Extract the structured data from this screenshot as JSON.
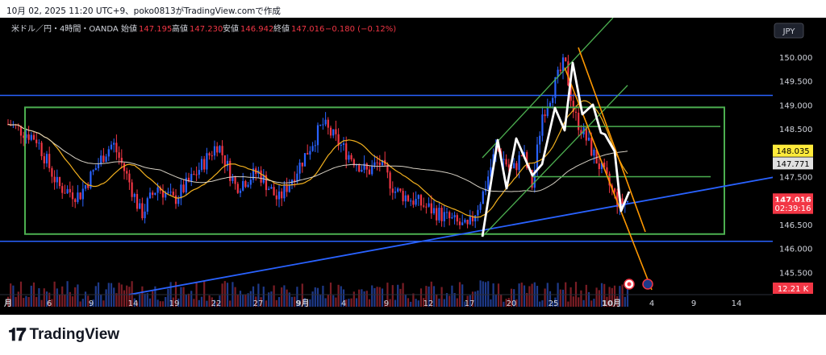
{
  "header": {
    "caption": "10月 02, 2025 11:20 UTC+9、poko0813がTradingView.comで作成"
  },
  "legend": {
    "symbol": "米ドル／円・4時間・OANDA",
    "open_label": "始値",
    "open": "147.195",
    "high_label": "高値",
    "high": "147.230",
    "low_label": "安値",
    "low": "146.942",
    "close_label": "終値",
    "close": "147.016",
    "change": "−0.180 (−0.12%)"
  },
  "currency_button": "JPY",
  "price_axis": {
    "ticks": [
      "150.000",
      "149.500",
      "149.000",
      "148.500",
      "147.500",
      "146.500",
      "146.000",
      "145.500"
    ],
    "labels": [
      {
        "text": "148.035",
        "bg": "#ffeb3b",
        "fg": "#000000",
        "value": 148.035
      },
      {
        "text": "147.771",
        "bg": "#e0e0e0",
        "fg": "#000000",
        "value": 147.771
      },
      {
        "text": "147.016",
        "bg": "#f23645",
        "fg": "#ffffff",
        "value": 147.016
      },
      {
        "text": "02:39:16",
        "bg": "#f23645",
        "fg": "#ffffff",
        "value": 146.84
      }
    ],
    "volume": "12.21 K"
  },
  "time_axis": {
    "ticks": [
      "月",
      "6",
      "9",
      "14",
      "19",
      "22",
      "27",
      "9月",
      "4",
      "9",
      "12",
      "17",
      "20",
      "25",
      "10月",
      "4",
      "9",
      "14"
    ]
  },
  "colors": {
    "up": "#2962ff",
    "down": "#f23645",
    "box": "#4caf50",
    "trend": "#2962ff",
    "channel": "#ff9800",
    "ma_fast": "#f2b01e",
    "ma_slow": "#d6d0c4"
  },
  "chart_data": {
    "type": "candlestick",
    "title": "米ドル／円・4時間・OANDA",
    "ylim": [
      145.3,
      150.45
    ],
    "x_categories": [
      "月",
      "6",
      "9",
      "14",
      "19",
      "22",
      "27",
      "9月",
      "4",
      "9",
      "12",
      "17",
      "20",
      "25",
      "10月",
      "4",
      "9",
      "14"
    ],
    "ohlc": {
      "open": 147.195,
      "high": 147.23,
      "low": 146.942,
      "close": 147.016,
      "change": -0.18,
      "change_pct": -0.12
    },
    "close_path": [
      {
        "t": "29",
        "v": 148.6
      },
      {
        "t": "1",
        "v": 148.3
      },
      {
        "t": "3",
        "v": 147.3
      },
      {
        "t": "6",
        "v": 147.1
      },
      {
        "t": "8",
        "v": 148.0
      },
      {
        "t": "9",
        "v": 148.2
      },
      {
        "t": "11",
        "v": 147.4
      },
      {
        "t": "14",
        "v": 146.7
      },
      {
        "t": "15",
        "v": 147.3
      },
      {
        "t": "18",
        "v": 147.0
      },
      {
        "t": "20",
        "v": 147.5
      },
      {
        "t": "22",
        "v": 148.2
      },
      {
        "t": "25",
        "v": 147.3
      },
      {
        "t": "27",
        "v": 147.6
      },
      {
        "t": "29",
        "v": 147.0
      },
      {
        "t": "1",
        "v": 147.7
      },
      {
        "t": "3",
        "v": 148.6
      },
      {
        "t": "5",
        "v": 148.0
      },
      {
        "t": "8",
        "v": 147.6
      },
      {
        "t": "11",
        "v": 147.8
      },
      {
        "t": "12",
        "v": 147.2
      },
      {
        "t": "16",
        "v": 146.9
      },
      {
        "t": "17",
        "v": 146.4
      },
      {
        "t": "18",
        "v": 147.2
      },
      {
        "t": "19",
        "v": 148.1
      },
      {
        "t": "22",
        "v": 147.6
      },
      {
        "t": "23",
        "v": 148.0
      },
      {
        "t": "24",
        "v": 147.3
      },
      {
        "t": "25",
        "v": 148.8
      },
      {
        "t": "26",
        "v": 149.9
      },
      {
        "t": "29",
        "v": 148.8
      },
      {
        "t": "30",
        "v": 148.0
      },
      {
        "t": "1",
        "v": 146.9
      },
      {
        "t": "2",
        "v": 147.0
      }
    ],
    "horizontal_lines": [
      149.2,
      146.15
    ],
    "range_box": {
      "top": 148.95,
      "bottom": 146.3
    },
    "horizontal_segments": [
      148.55,
      147.5
    ],
    "moving_averages": [
      "ma_fast",
      "ma_slow"
    ],
    "grid": false
  }
}
